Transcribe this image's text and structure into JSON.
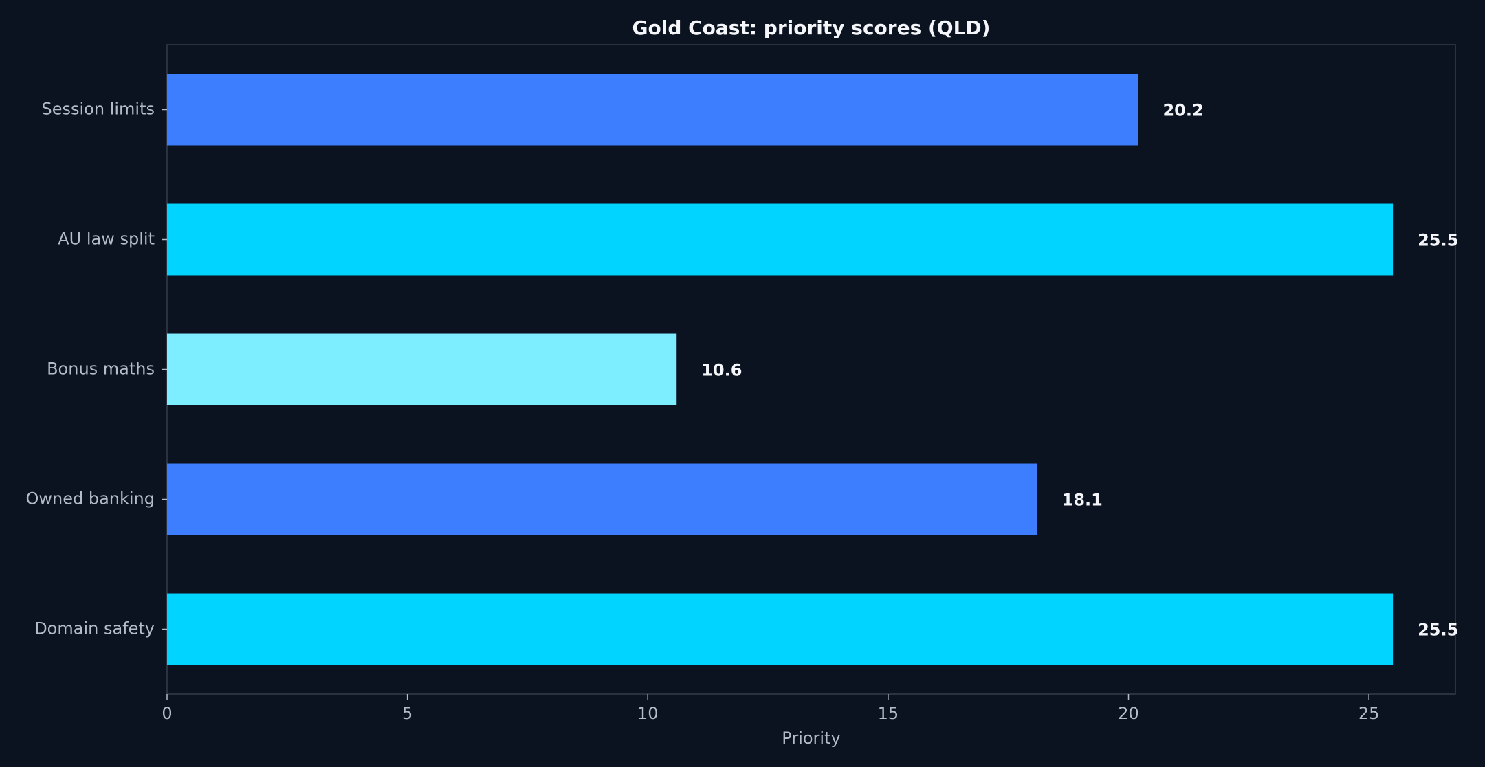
{
  "chart_data": {
    "type": "bar",
    "orientation": "horizontal",
    "title": "Gold Coast: priority scores (QLD)",
    "xlabel": "Priority",
    "ylabel": "",
    "categories": [
      "Session limits",
      "AU law split",
      "Bonus maths",
      "Owned banking",
      "Domain safety"
    ],
    "values": [
      20.2,
      25.5,
      10.6,
      18.1,
      25.5
    ],
    "data_labels": [
      "20.2",
      "25.5",
      "10.6",
      "18.1",
      "25.5"
    ],
    "bar_colors": [
      "#3d7eff",
      "#00d4ff",
      "#7ceeff",
      "#3d7eff",
      "#00d4ff"
    ],
    "xlim": [
      0,
      26.8
    ],
    "xticks": [
      0,
      5,
      10,
      15,
      20,
      25
    ],
    "xtick_labels": [
      "0",
      "5",
      "10",
      "15",
      "20",
      "25"
    ],
    "grid": false,
    "legend": "none"
  },
  "colors": {
    "background": "#0c1320",
    "frame": "#343c4a",
    "text": "#f4f6fa",
    "muted_text": "#b4bcc8"
  }
}
